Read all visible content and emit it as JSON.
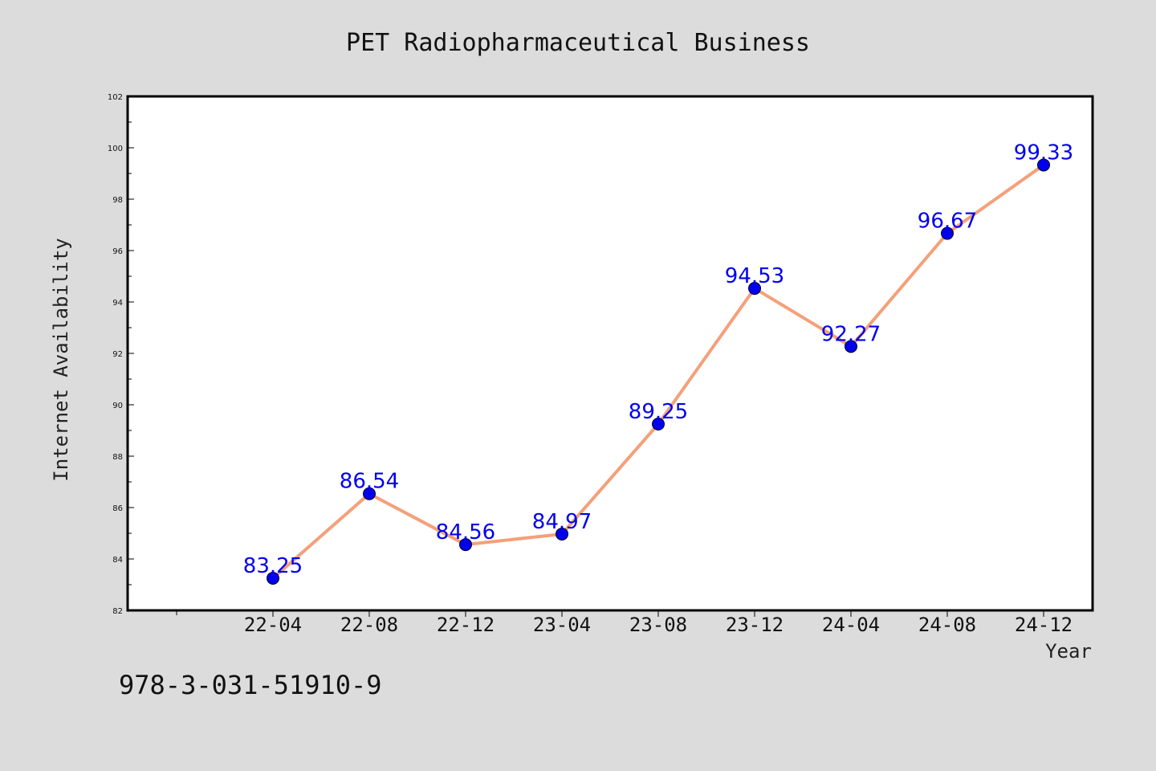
{
  "chart_data": {
    "type": "line",
    "title": "PET Radiopharmaceutical Business",
    "xlabel": "Year",
    "ylabel": "Internet Availability",
    "categories": [
      "22-04",
      "22-08",
      "22-12",
      "23-04",
      "23-08",
      "23-12",
      "24-04",
      "24-08",
      "24-12"
    ],
    "series": [
      {
        "values": [
          83.25,
          86.54,
          84.56,
          84.97,
          89.25,
          94.53,
          92.27,
          96.67,
          99.33
        ]
      }
    ],
    "value_labels": [
      "83.25",
      "86.54",
      "84.56",
      "84.97",
      "89.25",
      "94.53",
      "92.27",
      "96.67",
      "99.33"
    ],
    "ylim": [
      82,
      102
    ],
    "yticks": [
      82,
      84,
      86,
      88,
      90,
      92,
      94,
      96,
      98,
      100,
      102
    ],
    "ytick_labels": [
      "82",
      "84",
      "86",
      "88",
      "90",
      "92",
      "94",
      "96",
      "98",
      "100",
      "102"
    ],
    "grid": false,
    "legend": "none",
    "colors": {
      "line": "#f4a07a",
      "marker": "#0000ee",
      "data_label": "#0000ee",
      "plot_background": "#ffffff",
      "figure_background": "#dcdcdc"
    }
  },
  "footer": {
    "code": "978-3-031-51910-9"
  }
}
